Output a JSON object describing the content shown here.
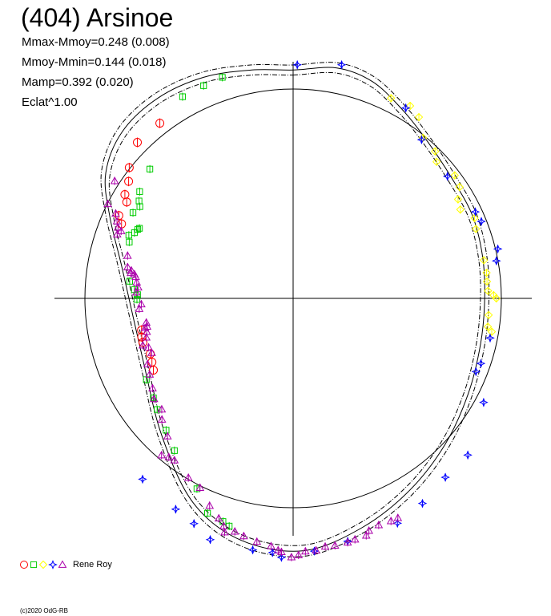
{
  "chart_data": {
    "type": "scatter",
    "title": "(404) Arsinoe",
    "stats": [
      "Mmax-Mmoy=0.248 (0.008)",
      "Mmoy-Mmin=0.144 (0.018)",
      "Mamp=0.392 (0.020)",
      "Eclat^1.00"
    ],
    "polar": true,
    "curves": [
      {
        "name": "reference",
        "style": "solid"
      },
      {
        "name": "fit",
        "style": "solid"
      },
      {
        "name": "fit-upper",
        "style": "dash-dot"
      },
      {
        "name": "fit-lower",
        "style": "dash-dot"
      }
    ],
    "legend": {
      "label": "Rene Roy",
      "position": "bottom-left",
      "symbols": [
        {
          "shape": "circle",
          "color": "#ff0000"
        },
        {
          "shape": "square",
          "color": "#00cc00"
        },
        {
          "shape": "diamond",
          "color": "#ffff00"
        },
        {
          "shape": "star",
          "color": "#0000ff"
        },
        {
          "shape": "triangle",
          "color": "#aa00aa"
        }
      ]
    },
    "series": [
      {
        "shape": "circle",
        "color": "#ff0000",
        "points": [
          [
            -0.64,
            0.84
          ],
          [
            -0.748,
            0.748
          ],
          [
            -0.787,
            0.627
          ],
          [
            -0.79,
            0.561
          ],
          [
            -0.808,
            0.498
          ],
          [
            -0.799,
            0.462
          ],
          [
            -0.837,
            0.397
          ],
          [
            -0.824,
            0.357
          ],
          [
            -0.728,
            -0.152
          ],
          [
            -0.727,
            -0.185
          ],
          [
            -0.721,
            -0.211
          ],
          [
            -0.686,
            -0.266
          ],
          [
            -0.678,
            -0.306
          ],
          [
            -0.671,
            -0.344
          ]
        ]
      },
      {
        "shape": "square",
        "color": "#00cc00",
        "points": [
          [
            -0.34,
            1.06
          ],
          [
            -0.43,
            1.02
          ],
          [
            -0.531,
            0.967
          ],
          [
            -0.688,
            0.62
          ],
          [
            -0.737,
            0.512
          ],
          [
            -0.74,
            0.467
          ],
          [
            -0.736,
            0.44
          ],
          [
            -0.769,
            0.411
          ],
          [
            -0.738,
            0.336
          ],
          [
            -0.746,
            0.331
          ],
          [
            -0.762,
            0.315
          ],
          [
            -0.789,
            0.303
          ],
          [
            -0.787,
            0.27
          ],
          [
            -0.785,
            0.082
          ],
          [
            -0.762,
            0.042
          ],
          [
            -0.747,
            0.018
          ],
          [
            -0.75,
            -0.005
          ],
          [
            -0.705,
            -0.39
          ],
          [
            -0.671,
            -0.477
          ],
          [
            -0.653,
            -0.533
          ],
          [
            -0.61,
            -0.632
          ],
          [
            -0.57,
            -0.73
          ],
          [
            -0.462,
            -0.913
          ],
          [
            -0.411,
            -1.03
          ],
          [
            -0.337,
            -1.07
          ],
          [
            -0.307,
            -1.092
          ]
        ]
      },
      {
        "shape": "diamond",
        "color": "#ffff00",
        "points": [
          [
            0.47,
            0.96
          ],
          [
            0.562,
            0.923
          ],
          [
            0.604,
            0.869
          ],
          [
            0.624,
            0.77
          ],
          [
            0.682,
            0.705
          ],
          [
            0.689,
            0.655
          ],
          [
            0.776,
            0.59
          ],
          [
            0.799,
            0.534
          ],
          [
            0.792,
            0.475
          ],
          [
            0.803,
            0.426
          ],
          [
            0.871,
            0.385
          ],
          [
            0.878,
            0.333
          ],
          [
            0.916,
            0.183
          ],
          [
            0.929,
            0.123
          ],
          [
            0.931,
            0.081
          ],
          [
            0.936,
            0.036
          ],
          [
            0.963,
            0.015
          ],
          [
            0.976,
            0.0
          ],
          [
            0.939,
            -0.08
          ],
          [
            0.935,
            -0.136
          ],
          [
            0.954,
            -0.16
          ]
        ]
      },
      {
        "shape": "star",
        "color": "#0000ff",
        "points": [
          [
            0.02,
            1.12
          ],
          [
            0.233,
            1.12
          ],
          [
            0.541,
            0.913
          ],
          [
            0.617,
            0.761
          ],
          [
            0.741,
            0.585
          ],
          [
            0.875,
            0.415
          ],
          [
            0.904,
            0.369
          ],
          [
            0.983,
            0.237
          ],
          [
            0.976,
            0.18
          ],
          [
            0.946,
            -0.19
          ],
          [
            0.902,
            -0.312
          ],
          [
            0.878,
            -0.351
          ],
          [
            0.915,
            -0.499
          ],
          [
            0.839,
            -0.751
          ],
          [
            0.731,
            -0.858
          ],
          [
            0.621,
            -0.983
          ],
          [
            0.501,
            -1.078
          ],
          [
            0.262,
            -1.165
          ],
          [
            0.102,
            -1.212
          ],
          [
            -0.056,
            -1.242
          ],
          [
            -0.099,
            -1.219
          ],
          [
            -0.194,
            -1.206
          ],
          [
            -0.398,
            -1.157
          ],
          [
            -0.476,
            -1.08
          ],
          [
            -0.564,
            -1.011
          ],
          [
            -0.723,
            -0.867
          ]
        ]
      },
      {
        "shape": "triangle",
        "color": "#aa00aa",
        "points": [
          [
            -0.857,
            0.563
          ],
          [
            -0.89,
            0.453
          ],
          [
            -0.852,
            0.407
          ],
          [
            -0.846,
            0.37
          ],
          [
            -0.841,
            0.34
          ],
          [
            -0.826,
            0.323
          ],
          [
            -0.845,
            0.307
          ],
          [
            -0.795,
            0.205
          ],
          [
            -0.795,
            0.15
          ],
          [
            -0.777,
            0.134
          ],
          [
            -0.779,
            0.122
          ],
          [
            -0.762,
            0.116
          ],
          [
            -0.756,
            0.103
          ],
          [
            -0.751,
            0.077
          ],
          [
            -0.744,
            0.053
          ],
          [
            -0.753,
            0.029
          ],
          [
            -0.729,
            -0.028
          ],
          [
            -0.739,
            -0.05
          ],
          [
            -0.705,
            -0.116
          ],
          [
            -0.701,
            -0.135
          ],
          [
            -0.711,
            -0.142
          ],
          [
            -0.703,
            -0.16
          ],
          [
            -0.705,
            -0.187
          ],
          [
            -0.722,
            -0.225
          ],
          [
            -0.694,
            -0.235
          ],
          [
            -0.679,
            -0.261
          ],
          [
            -0.699,
            -0.315
          ],
          [
            -0.689,
            -0.365
          ],
          [
            -0.675,
            -0.431
          ],
          [
            -0.668,
            -0.482
          ],
          [
            -0.631,
            -0.532
          ],
          [
            -0.63,
            -0.581
          ],
          [
            -0.603,
            -0.661
          ],
          [
            -0.632,
            -0.752
          ],
          [
            -0.597,
            -0.761
          ],
          [
            -0.57,
            -0.776
          ],
          [
            -0.503,
            -0.86
          ],
          [
            -0.447,
            -0.908
          ],
          [
            -0.401,
            -0.994
          ],
          [
            -0.357,
            -1.055
          ],
          [
            -0.333,
            -1.092
          ],
          [
            -0.329,
            -1.121
          ],
          [
            -0.28,
            -1.118
          ],
          [
            -0.237,
            -1.14
          ],
          [
            -0.174,
            -1.167
          ],
          [
            -0.106,
            -1.188
          ],
          [
            -0.072,
            -1.208
          ],
          [
            -0.056,
            -1.216
          ],
          [
            -0.008,
            -1.241
          ],
          [
            0.026,
            -1.231
          ],
          [
            0.059,
            -1.213
          ],
          [
            0.11,
            -1.208
          ],
          [
            0.154,
            -1.19
          ],
          [
            0.201,
            -1.185
          ],
          [
            0.262,
            -1.17
          ],
          [
            0.297,
            -1.156
          ],
          [
            0.351,
            -1.137
          ],
          [
            0.364,
            -1.114
          ],
          [
            0.411,
            -1.087
          ],
          [
            0.47,
            -1.068
          ],
          [
            0.503,
            -1.053
          ]
        ]
      }
    ]
  },
  "footer": {
    "copyright": "(c)2020 OdG-RB"
  }
}
